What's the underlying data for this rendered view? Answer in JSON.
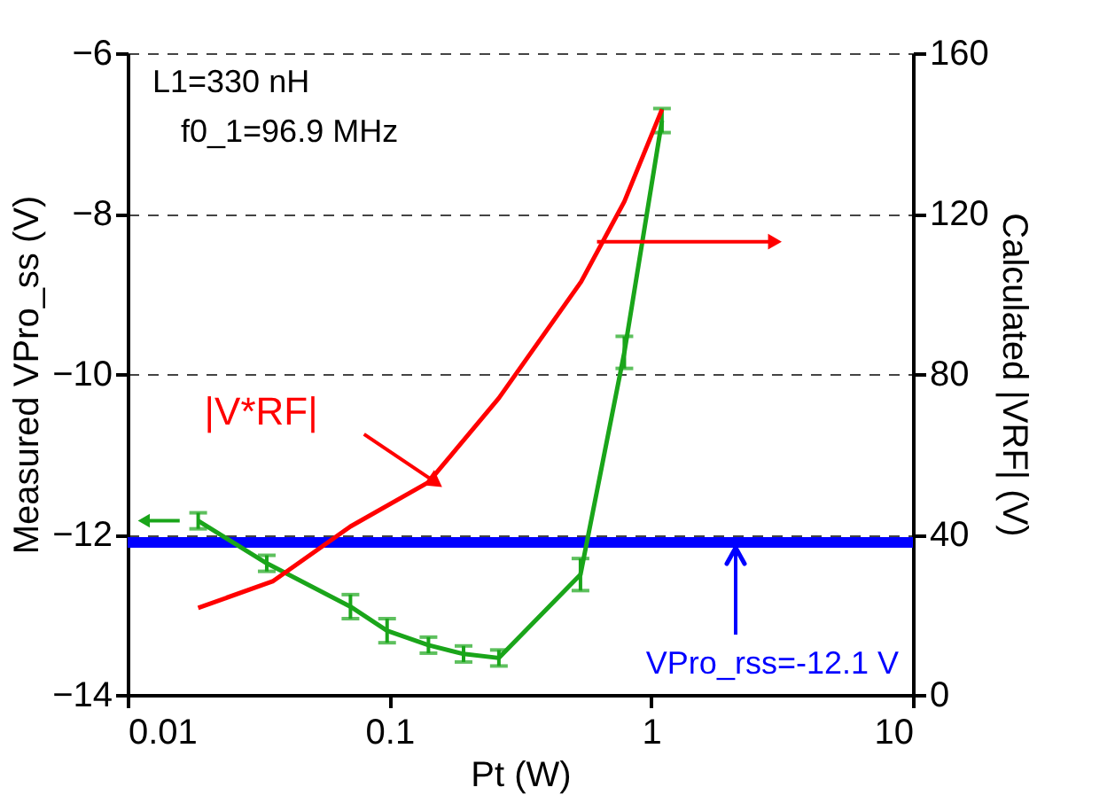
{
  "chart_data": {
    "type": "line",
    "xlabel": "Pt (W)",
    "ylabel": "Measured VPro_ss (V)",
    "y2label": "Calculated |VRF| (V)",
    "log": "x",
    "xlim": [
      0.01,
      10
    ],
    "xticks": [
      0.01,
      0.1,
      1,
      10
    ],
    "ylim": [
      -14,
      -6
    ],
    "yticks": [
      -14,
      -12,
      -10,
      -8,
      -6
    ],
    "y2lim": [
      0,
      160
    ],
    "y2ticks": [
      0,
      40,
      80,
      120,
      160
    ],
    "grid": "y",
    "series": [
      {
        "axis": "y",
        "color": "#1aa51a",
        "x": [
          0.0186,
          0.034,
          0.071,
          0.098,
          0.141,
          0.192,
          0.262,
          0.537,
          0.79,
          1.1
        ],
        "values": [
          -11.83,
          -12.36,
          -12.9,
          -13.2,
          -13.38,
          -13.49,
          -13.54,
          -12.5,
          -9.73,
          -6.84
        ],
        "errors": [
          0.1,
          0.1,
          0.15,
          0.15,
          0.1,
          0.1,
          0.1,
          0.2,
          0.2,
          0.15
        ]
      },
      {
        "axis": "y2",
        "color": "#ff0000",
        "x": [
          0.0186,
          0.0358,
          0.071,
          0.141,
          0.262,
          0.54,
          0.79,
          1.1
        ],
        "values": [
          21.7,
          28.3,
          42,
          53,
          74,
          103,
          123,
          146
        ]
      }
    ],
    "ref_lines": [
      {
        "axis": "y",
        "value": -12.1,
        "label": "VPro_rss=-12.1 V",
        "color": "#0000ff"
      }
    ],
    "annotations": [
      "L1=330 nH",
      "f0_1=96.9 MHz",
      "|V*RF|"
    ]
  }
}
